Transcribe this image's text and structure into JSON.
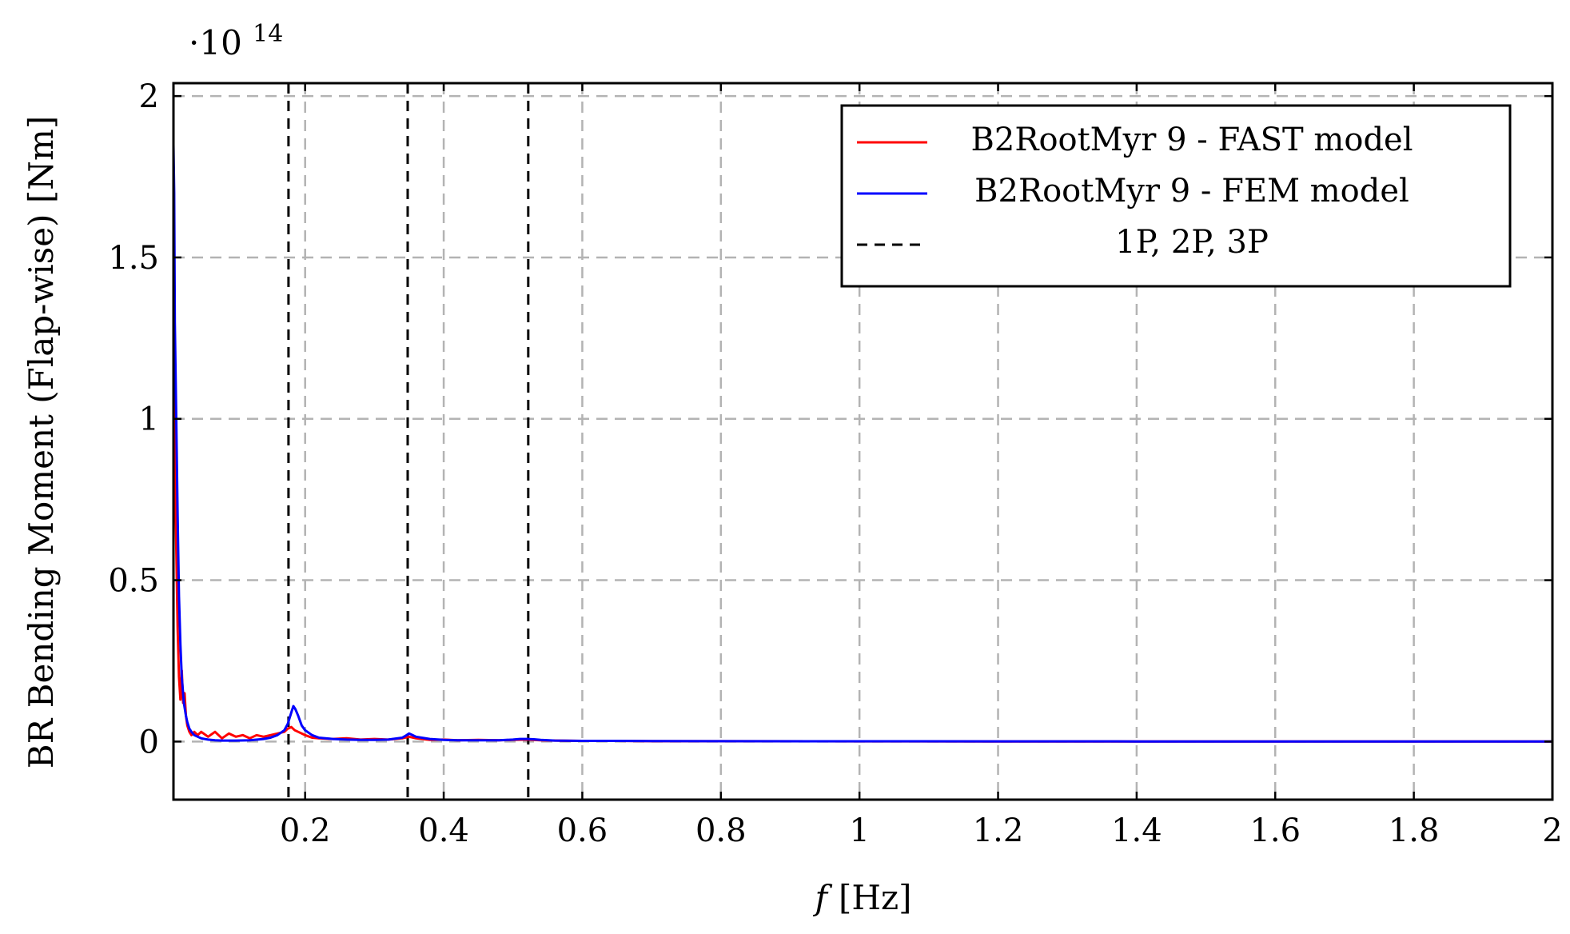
{
  "chart_data": {
    "type": "line",
    "title": "",
    "xlabel_var": "f",
    "xlabel_unit": "[Hz]",
    "ylabel": "BR Bending Moment (Flap-wise) [Nm]",
    "y_scale_base": "·10",
    "y_scale_exp": "14",
    "xlim": [
      0.01,
      2.0
    ],
    "ylim": [
      -0.18,
      2.04
    ],
    "x_ticks": [
      0.2,
      0.4,
      0.6,
      0.8,
      1.0,
      1.2,
      1.4,
      1.6,
      1.8,
      2.0
    ],
    "x_tick_labels": [
      "0.2",
      "0.4",
      "0.6",
      "0.8",
      "1",
      "1.2",
      "1.4",
      "1.6",
      "1.8",
      "2"
    ],
    "y_ticks": [
      0,
      0.5,
      1.0,
      1.5,
      2.0
    ],
    "y_tick_labels": [
      "0",
      "0.5",
      "1",
      "1.5",
      "2"
    ],
    "grid": true,
    "legend_position": "top-right",
    "series": [
      {
        "name": "B2RootMyr 9 - FAST model",
        "color": "#ff0000",
        "x": [
          0.01,
          0.012,
          0.014,
          0.016,
          0.018,
          0.02,
          0.022,
          0.024,
          0.026,
          0.028,
          0.03,
          0.033,
          0.036,
          0.04,
          0.045,
          0.05,
          0.06,
          0.07,
          0.08,
          0.09,
          0.1,
          0.11,
          0.12,
          0.13,
          0.14,
          0.15,
          0.16,
          0.17,
          0.175,
          0.18,
          0.185,
          0.19,
          0.2,
          0.21,
          0.22,
          0.24,
          0.26,
          0.28,
          0.3,
          0.32,
          0.34,
          0.35,
          0.36,
          0.38,
          0.4,
          0.42,
          0.45,
          0.48,
          0.5,
          0.52,
          0.54,
          0.56,
          0.6,
          0.65,
          0.7,
          0.8,
          1.0,
          1.2,
          1.4,
          1.6,
          1.8,
          2.0
        ],
        "values": [
          1.3,
          0.9,
          0.6,
          0.35,
          0.2,
          0.13,
          0.22,
          0.12,
          0.15,
          0.08,
          0.05,
          0.03,
          0.02,
          0.03,
          0.02,
          0.03,
          0.015,
          0.03,
          0.01,
          0.025,
          0.015,
          0.02,
          0.01,
          0.02,
          0.015,
          0.02,
          0.025,
          0.03,
          0.04,
          0.045,
          0.035,
          0.03,
          0.02,
          0.012,
          0.01,
          0.008,
          0.01,
          0.006,
          0.008,
          0.006,
          0.01,
          0.015,
          0.01,
          0.005,
          0.006,
          0.004,
          0.005,
          0.004,
          0.005,
          0.006,
          0.004,
          0.003,
          0.002,
          0.002,
          0.001,
          0.001,
          0.0005,
          0.0003,
          0.0002,
          0.0002,
          0.0001,
          0.0001
        ]
      },
      {
        "name": "B2RootMyr 9 - FEM model",
        "color": "#0000ff",
        "x": [
          0.01,
          0.011,
          0.012,
          0.014,
          0.016,
          0.018,
          0.02,
          0.022,
          0.025,
          0.028,
          0.03,
          0.033,
          0.036,
          0.04,
          0.045,
          0.05,
          0.06,
          0.07,
          0.08,
          0.1,
          0.12,
          0.14,
          0.15,
          0.16,
          0.17,
          0.175,
          0.18,
          0.183,
          0.186,
          0.19,
          0.195,
          0.2,
          0.21,
          0.22,
          0.24,
          0.26,
          0.28,
          0.3,
          0.32,
          0.34,
          0.345,
          0.35,
          0.355,
          0.36,
          0.38,
          0.4,
          0.42,
          0.45,
          0.48,
          0.5,
          0.51,
          0.52,
          0.53,
          0.54,
          0.56,
          0.6,
          0.65,
          0.7,
          0.8,
          1.0,
          1.2,
          1.4,
          1.6,
          1.8,
          2.0
        ],
        "values": [
          1.85,
          1.7,
          1.3,
          1.0,
          0.7,
          0.45,
          0.3,
          0.2,
          0.12,
          0.08,
          0.06,
          0.04,
          0.03,
          0.02,
          0.015,
          0.01,
          0.006,
          0.004,
          0.003,
          0.003,
          0.004,
          0.008,
          0.012,
          0.02,
          0.035,
          0.055,
          0.09,
          0.11,
          0.1,
          0.08,
          0.05,
          0.035,
          0.02,
          0.012,
          0.008,
          0.006,
          0.005,
          0.005,
          0.006,
          0.012,
          0.018,
          0.025,
          0.02,
          0.015,
          0.008,
          0.005,
          0.004,
          0.004,
          0.004,
          0.006,
          0.008,
          0.008,
          0.007,
          0.005,
          0.003,
          0.002,
          0.002,
          0.0015,
          0.001,
          0.0008,
          0.0005,
          0.0004,
          0.0003,
          0.0002,
          0.0002
        ]
      },
      {
        "name": "1P, 2P, 3P",
        "color": "#000000",
        "style": "dashed",
        "x_positions": [
          0.176,
          0.348,
          0.522
        ]
      }
    ]
  }
}
